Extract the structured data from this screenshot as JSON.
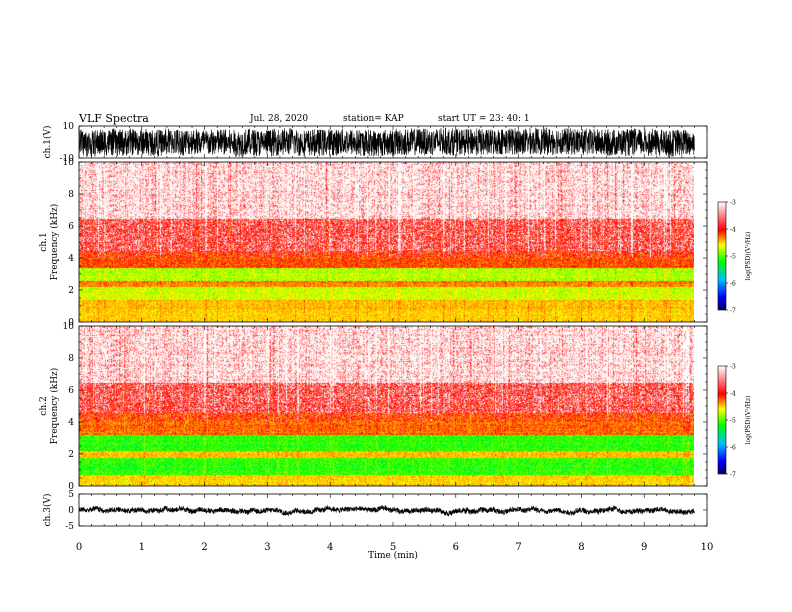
{
  "header": {
    "title": "VLF Spectra",
    "date": "Jul. 28, 2020",
    "station": "station= KAP",
    "start": "start UT =  23: 40: 1"
  },
  "chart_data": [
    {
      "type": "line",
      "ylabel": "ch.1(V)",
      "ylim": [
        -10,
        10
      ],
      "yticks": [
        "10",
        "-10"
      ],
      "xlim": [
        0,
        10
      ],
      "description_values": {
        "typical_range": [
          -8,
          9
        ]
      }
    },
    {
      "type": "heatmap",
      "ylabel": "ch.1\nFrequency (kHz)",
      "ylim": [
        0,
        10
      ],
      "yticks": [
        "0",
        "2",
        "4",
        "6",
        "8",
        "10"
      ],
      "xlim": [
        0,
        10
      ],
      "data_end_min": 9.8,
      "colorbar": {
        "label": "log(PSD)(V²/Hz)",
        "ticks": [
          "-3",
          "-4",
          "-5",
          "-6",
          "-7"
        ],
        "range": [
          -7,
          -3
        ]
      },
      "bands": [
        {
          "f_low": 0,
          "f_high": 0.8,
          "level": -4.4
        },
        {
          "f_low": 0.8,
          "f_high": 1.4,
          "level": -4.3
        },
        {
          "f_low": 1.4,
          "f_high": 2.2,
          "level": -4.7
        },
        {
          "f_low": 2.2,
          "f_high": 2.6,
          "level": -4.1
        },
        {
          "f_low": 2.6,
          "f_high": 3.4,
          "level": -4.8
        },
        {
          "f_low": 3.4,
          "f_high": 4.5,
          "level": -3.9
        },
        {
          "f_low": 4.5,
          "f_high": 6.5,
          "level": -3.6
        },
        {
          "f_low": 6.5,
          "f_high": 10,
          "level": -3.2
        }
      ]
    },
    {
      "type": "heatmap",
      "ylabel": "ch.2\nFrequency (kHz)",
      "ylim": [
        0,
        10
      ],
      "yticks": [
        "0",
        "2",
        "4",
        "6",
        "8",
        "10"
      ],
      "xlim": [
        0,
        10
      ],
      "data_end_min": 9.8,
      "colorbar": {
        "label": "log(PSD)(V²/Hz)",
        "ticks": [
          "-3",
          "-4",
          "-5",
          "-6",
          "-7"
        ],
        "range": [
          -7,
          -3
        ]
      },
      "bands": [
        {
          "f_low": 0,
          "f_high": 0.7,
          "level": -4.4
        },
        {
          "f_low": 0.7,
          "f_high": 1.8,
          "level": -5.2
        },
        {
          "f_low": 1.8,
          "f_high": 2.2,
          "level": -4.3
        },
        {
          "f_low": 2.2,
          "f_high": 3.2,
          "level": -5.2
        },
        {
          "f_low": 3.2,
          "f_high": 4.6,
          "level": -4.0
        },
        {
          "f_low": 4.6,
          "f_high": 6.5,
          "level": -3.6
        },
        {
          "f_low": 6.5,
          "f_high": 10,
          "level": -3.2
        }
      ]
    },
    {
      "type": "line",
      "ylabel": "ch.3(V)",
      "ylim": [
        -5,
        5
      ],
      "yticks": [
        "5",
        "0",
        "-5"
      ],
      "xlim": [
        0,
        10
      ],
      "xlabel": "Time (min)",
      "xticks": [
        "0",
        "1",
        "2",
        "3",
        "4",
        "5",
        "6",
        "7",
        "8",
        "9",
        "10"
      ],
      "description_values": {
        "typical_range": [
          -0.8,
          0.8
        ]
      }
    }
  ]
}
